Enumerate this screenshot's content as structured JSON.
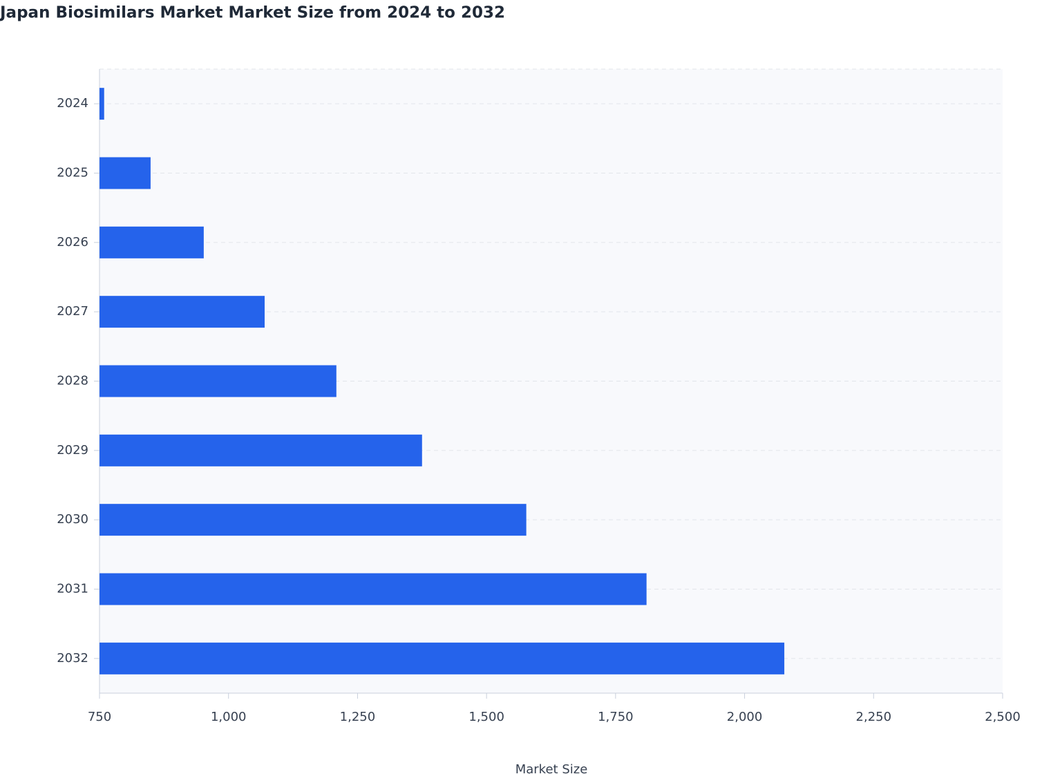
{
  "chart_data": {
    "type": "bar",
    "orientation": "horizontal",
    "title": "Japan Biosimilars Market Market Size from 2024 to 2032",
    "x_label": "Market Size",
    "categories": [
      "2024",
      "2025",
      "2026",
      "2027",
      "2028",
      "2029",
      "2030",
      "2031",
      "2032"
    ],
    "values": [
      759,
      849,
      952,
      1070,
      1209,
      1375,
      1577,
      1810,
      2077
    ],
    "color": "#2563eb",
    "xlim": [
      750,
      2500
    ],
    "xticks": [
      750,
      {
        "value": 1000,
        "label": "1,000"
      },
      {
        "value": 1250,
        "label": "1,250"
      },
      {
        "value": 1500,
        "label": "1,500"
      },
      {
        "value": 1750,
        "label": "1,750"
      },
      {
        "value": 2000,
        "label": "2,000"
      },
      {
        "value": 2250,
        "label": "2,250"
      },
      {
        "value": 2500,
        "label": "2,500"
      }
    ],
    "grid": true
  }
}
